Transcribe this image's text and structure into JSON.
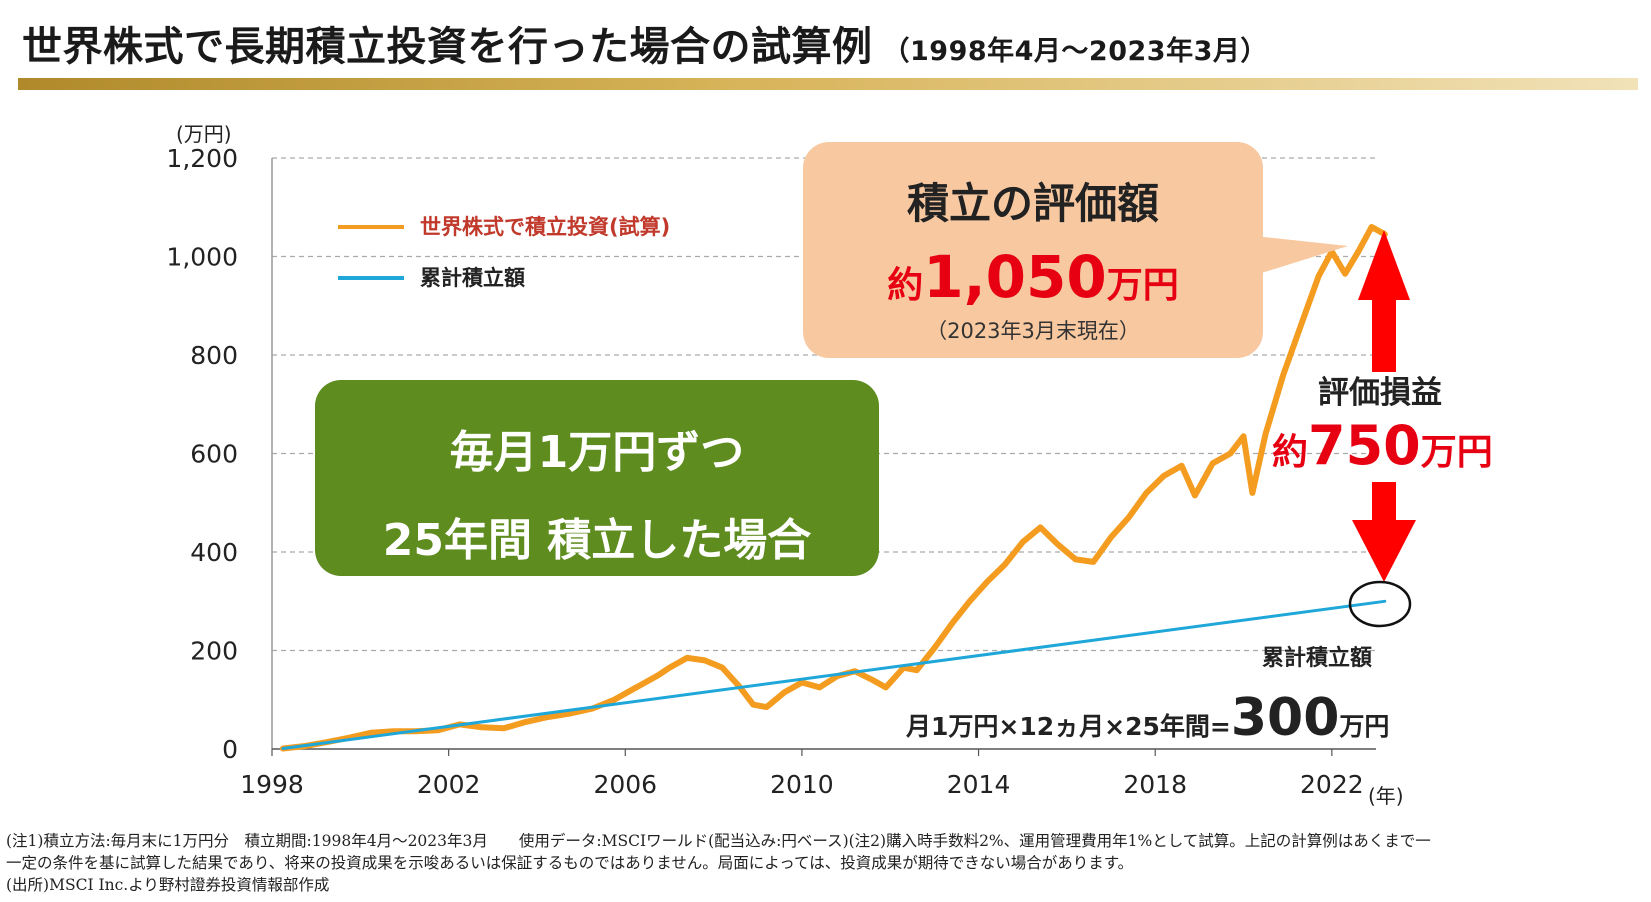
{
  "header": {
    "title": "世界株式で長期積立投資を行った場合の試算例",
    "subtitle": "（1998年4月～2023年3月）"
  },
  "chart_data": {
    "type": "line",
    "y_unit_label": "(万円)",
    "x_unit_label": "(年)",
    "ylim": [
      0,
      1200
    ],
    "xlim": [
      1998,
      2023
    ],
    "y_ticks": [
      "0",
      "200",
      "400",
      "600",
      "800",
      "1,000",
      "1,200"
    ],
    "y_tick_values": [
      0,
      200,
      400,
      600,
      800,
      1000,
      1200
    ],
    "x_ticks": [
      "1998",
      "2002",
      "2006",
      "2010",
      "2014",
      "2018",
      "2022"
    ],
    "x_tick_values": [
      1998,
      2002,
      2006,
      2010,
      2014,
      2018,
      2022
    ],
    "grid": "horizontal-dashed",
    "legend_placement": "top-left",
    "series": [
      {
        "name": "世界株式で積立投資(試算)",
        "color": "#f39c1f",
        "points": [
          [
            1998.25,
            1
          ],
          [
            1998.75,
            6
          ],
          [
            1999.25,
            14
          ],
          [
            1999.75,
            23
          ],
          [
            2000.25,
            33
          ],
          [
            2000.75,
            36
          ],
          [
            2001.25,
            36
          ],
          [
            2001.75,
            38
          ],
          [
            2002.25,
            50
          ],
          [
            2002.75,
            44
          ],
          [
            2003.25,
            42
          ],
          [
            2003.75,
            55
          ],
          [
            2004.25,
            65
          ],
          [
            2004.75,
            72
          ],
          [
            2005.25,
            82
          ],
          [
            2005.75,
            100
          ],
          [
            2006.25,
            125
          ],
          [
            2006.75,
            150
          ],
          [
            2007.0,
            165
          ],
          [
            2007.4,
            185
          ],
          [
            2007.8,
            180
          ],
          [
            2008.2,
            165
          ],
          [
            2008.6,
            125
          ],
          [
            2008.9,
            90
          ],
          [
            2009.2,
            85
          ],
          [
            2009.6,
            115
          ],
          [
            2010.0,
            135
          ],
          [
            2010.4,
            125
          ],
          [
            2010.8,
            148
          ],
          [
            2011.2,
            158
          ],
          [
            2011.6,
            140
          ],
          [
            2011.9,
            125
          ],
          [
            2012.3,
            165
          ],
          [
            2012.6,
            160
          ],
          [
            2013.0,
            205
          ],
          [
            2013.4,
            255
          ],
          [
            2013.8,
            300
          ],
          [
            2014.2,
            340
          ],
          [
            2014.6,
            375
          ],
          [
            2015.0,
            420
          ],
          [
            2015.4,
            450
          ],
          [
            2015.8,
            415
          ],
          [
            2016.2,
            385
          ],
          [
            2016.6,
            380
          ],
          [
            2017.0,
            430
          ],
          [
            2017.4,
            470
          ],
          [
            2017.8,
            520
          ],
          [
            2018.2,
            555
          ],
          [
            2018.6,
            575
          ],
          [
            2018.9,
            515
          ],
          [
            2019.3,
            580
          ],
          [
            2019.7,
            600
          ],
          [
            2020.0,
            635
          ],
          [
            2020.2,
            520
          ],
          [
            2020.5,
            640
          ],
          [
            2020.9,
            760
          ],
          [
            2021.3,
            860
          ],
          [
            2021.7,
            960
          ],
          [
            2022.0,
            1010
          ],
          [
            2022.3,
            965
          ],
          [
            2022.6,
            1010
          ],
          [
            2022.9,
            1060
          ],
          [
            2023.2,
            1045
          ]
        ]
      },
      {
        "name": "累計積立額",
        "color": "#1ea7d8",
        "points": [
          [
            1998.25,
            1
          ],
          [
            2023.2,
            300
          ]
        ]
      }
    ]
  },
  "bubble": {
    "title": "積立の評価額",
    "value_prefix": "約",
    "value": "1,050",
    "value_unit": "万円",
    "note": "（2023年3月末現在）",
    "bg_color": "#f8c9a0"
  },
  "green_box": {
    "line1": "毎月1万円ずつ",
    "line2": "25年間 積立した場合",
    "bg_color": "#5e8c1f"
  },
  "gain": {
    "label": "評価損益",
    "value_prefix": "約",
    "value": "750",
    "value_unit": "万円",
    "color": "#e60012"
  },
  "cumulative": {
    "label": "累計積立額",
    "calc_prefix": "月1万円×12ヵ月×25年間=",
    "calc_value": "300",
    "calc_unit": "万円"
  },
  "notes": {
    "line1": "(注1)積立方法:毎月末に1万円分　積立期間:1998年4月～2023年3月　　使用データ:MSCIワールド(配当込み:円ベース)(注2)購入時手数料2%、運用管理費用年1%として試算。上記の計算例はあくまで一",
    "line2": "一定の条件を基に試算した結果であり、将来の投資成果を示唆あるいは保証するものではありません。局面によっては、投資成果が期待できない場合があります。",
    "line3": "(出所)MSCI Inc.より野村證券投資情報部作成"
  }
}
